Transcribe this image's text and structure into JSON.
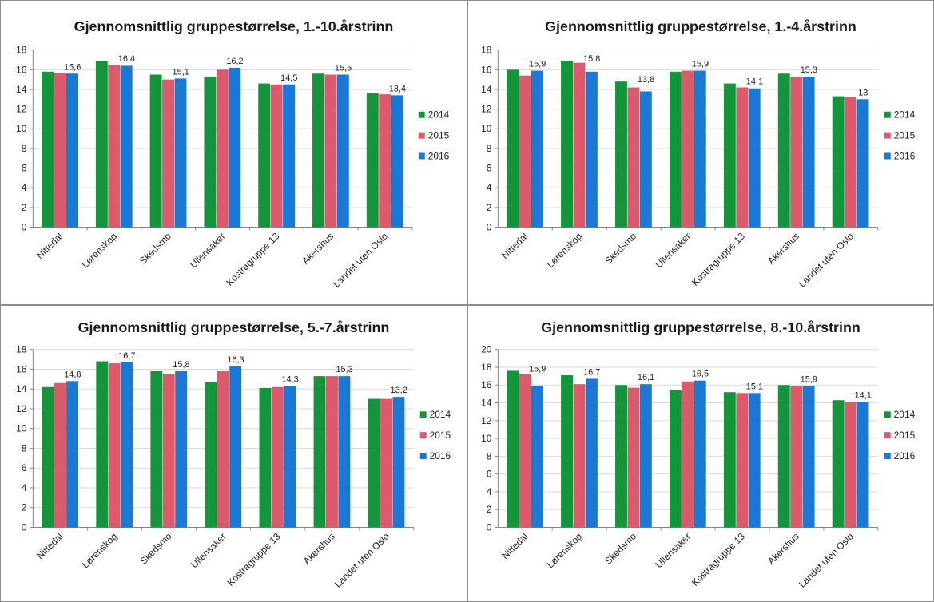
{
  "series_colors": {
    "2014": "#14953c",
    "2015": "#db5a6b",
    "2016": "#1a78d6"
  },
  "legend": [
    "2014",
    "2015",
    "2016"
  ],
  "chart_data": [
    {
      "type": "bar",
      "title": "Gjennomsnittlig gruppestørrelse, 1.-10.årstrinn",
      "categories": [
        "Nittedal",
        "Lørenskog",
        "Skedsmo",
        "Ullensaker",
        "Kostragruppe 13",
        "Akershus",
        "Landet uten Oslo"
      ],
      "series": [
        {
          "name": "2014",
          "values": [
            15.8,
            16.9,
            15.5,
            15.3,
            14.6,
            15.6,
            13.6
          ]
        },
        {
          "name": "2015",
          "values": [
            15.7,
            16.5,
            15.0,
            16.0,
            14.5,
            15.5,
            13.5
          ]
        },
        {
          "name": "2016",
          "values": [
            15.6,
            16.4,
            15.1,
            16.2,
            14.5,
            15.5,
            13.4
          ]
        }
      ],
      "data_labels": [
        "15,6",
        "16,4",
        "15,1",
        "16,2",
        "14,5",
        "15,5",
        "13,4"
      ],
      "yticks": [
        "0",
        "2",
        "4",
        "6",
        "8",
        "10",
        "12",
        "14",
        "16",
        "18"
      ],
      "ylim": [
        0,
        18
      ],
      "xlabel": "",
      "ylabel": "",
      "grid": true,
      "legend_position": "right"
    },
    {
      "type": "bar",
      "title": "Gjennomsnittlig gruppestørrelse, 1.-4.årstrinn",
      "categories": [
        "Nittedal",
        "Lørenskog",
        "Skedsmo",
        "Ullensaker",
        "Kostragruppe 13",
        "Akershus",
        "Landet uten Oslo"
      ],
      "series": [
        {
          "name": "2014",
          "values": [
            16.0,
            16.9,
            14.8,
            15.8,
            14.6,
            15.6,
            13.3
          ]
        },
        {
          "name": "2015",
          "values": [
            15.4,
            16.7,
            14.2,
            15.9,
            14.2,
            15.3,
            13.2
          ]
        },
        {
          "name": "2016",
          "values": [
            15.9,
            15.8,
            13.8,
            15.9,
            14.1,
            15.3,
            13.0
          ]
        }
      ],
      "data_labels": [
        "15,9",
        "15,8",
        "13,8",
        "15,9",
        "14,1",
        "15,3",
        "13"
      ],
      "yticks": [
        "0",
        "2",
        "4",
        "6",
        "8",
        "10",
        "12",
        "14",
        "16",
        "18"
      ],
      "ylim": [
        0,
        18
      ],
      "xlabel": "",
      "ylabel": "",
      "grid": true,
      "legend_position": "right"
    },
    {
      "type": "bar",
      "title": "Gjennomsnittlig gruppestørrelse, 5.-7.årstrinn",
      "categories": [
        "Nittedal",
        "Lørenskog",
        "Skedsmo",
        "Ullensaker",
        "Kostragruppe 13",
        "Akershus",
        "Landet uten Oslo"
      ],
      "series": [
        {
          "name": "2014",
          "values": [
            14.2,
            16.8,
            15.8,
            14.7,
            14.1,
            15.3,
            13.0
          ]
        },
        {
          "name": "2015",
          "values": [
            14.6,
            16.6,
            15.5,
            15.8,
            14.2,
            15.3,
            13.0
          ]
        },
        {
          "name": "2016",
          "values": [
            14.8,
            16.7,
            15.8,
            16.3,
            14.3,
            15.3,
            13.2
          ]
        }
      ],
      "data_labels": [
        "14,8",
        "16,7",
        "15,8",
        "16,3",
        "14,3",
        "15,3",
        "13,2"
      ],
      "yticks": [
        "0",
        "2",
        "4",
        "6",
        "8",
        "10",
        "12",
        "14",
        "16",
        "18"
      ],
      "ylim": [
        0,
        18
      ],
      "xlabel": "",
      "ylabel": "",
      "grid": true,
      "legend_position": "right"
    },
    {
      "type": "bar",
      "title": "Gjennomsnittlig gruppestørrelse, 8.-10.årstrinn",
      "categories": [
        "Nittedal",
        "Lørenskog",
        "Skedsmo",
        "Ullensaker",
        "Kostragruppe 13",
        "Akershus",
        "Landet uten Oslo"
      ],
      "series": [
        {
          "name": "2014",
          "values": [
            17.6,
            17.1,
            16.0,
            15.4,
            15.2,
            16.0,
            14.3
          ]
        },
        {
          "name": "2015",
          "values": [
            17.2,
            16.1,
            15.7,
            16.4,
            15.1,
            15.9,
            14.1
          ]
        },
        {
          "name": "2016",
          "values": [
            15.9,
            16.7,
            16.1,
            16.5,
            15.1,
            15.9,
            14.1
          ]
        }
      ],
      "data_labels": [
        "15,9",
        "16,7",
        "16,1",
        "16,5",
        "15,1",
        "15,9",
        "14,1"
      ],
      "yticks": [
        "0",
        "2",
        "4",
        "6",
        "8",
        "10",
        "12",
        "14",
        "16",
        "18",
        "20"
      ],
      "ylim": [
        0,
        20
      ],
      "xlabel": "",
      "ylabel": "",
      "grid": true,
      "legend_position": "right"
    }
  ]
}
